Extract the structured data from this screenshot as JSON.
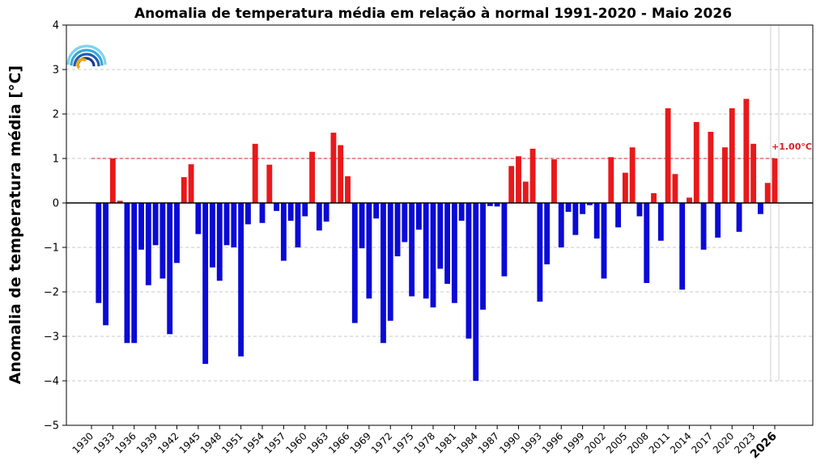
{
  "chart_data": {
    "type": "bar",
    "title": "Anomalia de temperatura média em relação à normal 1991-2020 - Maio 2026",
    "ylabel": "Anomalia de temperatura média [°C]",
    "xlabel": "",
    "ylim": [
      -5,
      4
    ],
    "yticks": [
      4,
      3,
      2,
      1,
      0,
      -1,
      -2,
      -3,
      -4,
      -5
    ],
    "ytick_labels": [
      "4",
      "3",
      "2",
      "1",
      "0",
      "−1",
      "−2",
      "−3",
      "−4",
      "−5"
    ],
    "grid": "horizontal dashed",
    "positive_color": "#e8191b",
    "negative_color": "#0a0ad6",
    "reference_line": {
      "value": 1.0,
      "label": "+1.00°C",
      "color": "#d62020"
    },
    "highlight_year": 2026,
    "xtick_years": [
      1930,
      1933,
      1936,
      1939,
      1942,
      1945,
      1948,
      1951,
      1954,
      1957,
      1960,
      1963,
      1966,
      1969,
      1972,
      1975,
      1978,
      1981,
      1984,
      1987,
      1990,
      1993,
      1996,
      1999,
      2002,
      2005,
      2008,
      2011,
      2014,
      2017,
      2020,
      2023,
      2026
    ],
    "years": [
      1931,
      1932,
      1933,
      1934,
      1935,
      1936,
      1937,
      1938,
      1939,
      1940,
      1941,
      1942,
      1943,
      1944,
      1945,
      1946,
      1947,
      1948,
      1949,
      1950,
      1951,
      1952,
      1953,
      1954,
      1955,
      1956,
      1957,
      1958,
      1959,
      1960,
      1961,
      1962,
      1963,
      1964,
      1965,
      1966,
      1967,
      1968,
      1969,
      1970,
      1971,
      1972,
      1973,
      1974,
      1975,
      1976,
      1977,
      1978,
      1979,
      1980,
      1981,
      1982,
      1983,
      1984,
      1985,
      1986,
      1987,
      1988,
      1989,
      1990,
      1991,
      1992,
      1993,
      1994,
      1995,
      1996,
      1997,
      1998,
      1999,
      2000,
      2001,
      2002,
      2003,
      2004,
      2005,
      2006,
      2007,
      2008,
      2009,
      2010,
      2011,
      2012,
      2013,
      2014,
      2015,
      2016,
      2017,
      2018,
      2019,
      2020,
      2021,
      2022,
      2023,
      2024,
      2025,
      2026
    ],
    "values": [
      -2.25,
      -2.75,
      1.0,
      0.05,
      -3.15,
      -3.15,
      -1.05,
      -1.85,
      -0.95,
      -1.7,
      -2.95,
      -1.35,
      0.58,
      0.87,
      -0.7,
      -3.62,
      -1.45,
      -1.75,
      -0.95,
      -1.0,
      -3.45,
      -0.48,
      1.33,
      -0.45,
      0.86,
      -0.18,
      -1.3,
      -0.4,
      -1.0,
      -0.3,
      1.15,
      -0.62,
      -0.42,
      1.58,
      1.3,
      0.6,
      -2.7,
      -1.02,
      -2.15,
      -0.35,
      -3.15,
      -2.65,
      -1.2,
      -0.88,
      -2.1,
      -0.6,
      -2.15,
      -2.35,
      -1.48,
      -1.82,
      -2.25,
      -0.4,
      -3.05,
      -4.0,
      -2.4,
      -0.07,
      -0.08,
      -1.65,
      0.83,
      1.05,
      0.48,
      1.22,
      -2.22,
      -1.38,
      0.98,
      -1.0,
      -0.2,
      -0.72,
      -0.25,
      -0.05,
      -0.8,
      -1.7,
      1.03,
      -0.55,
      0.68,
      1.25,
      -0.3,
      -1.8,
      0.22,
      -0.85,
      2.13,
      0.65,
      -1.95,
      0.12,
      1.82,
      -1.05,
      1.6,
      -0.78,
      1.25,
      2.13,
      -0.65,
      2.34,
      1.33,
      -0.25,
      0.45,
      1.0
    ]
  }
}
